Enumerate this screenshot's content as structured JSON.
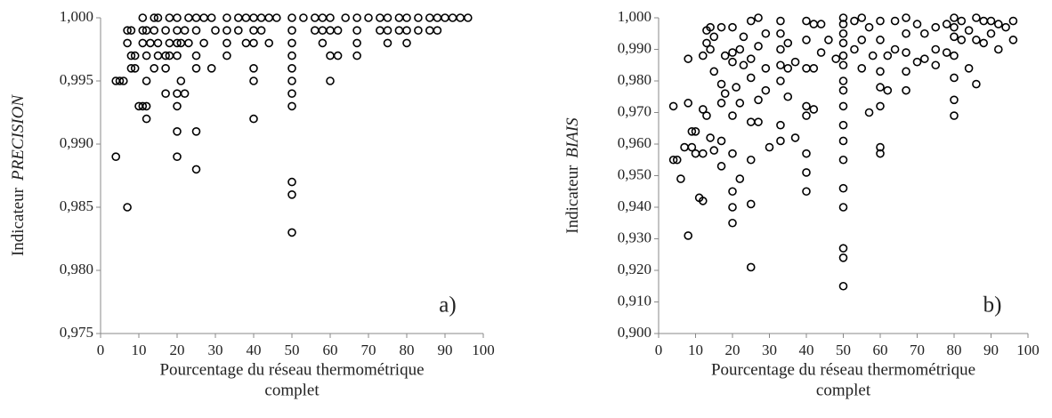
{
  "chart_data": [
    {
      "type": "scatter",
      "annotation": "a)",
      "ylabel": "Indicateur",
      "ylabel_emph": "PRECISION",
      "xlabel": [
        "Pourcentage du réseau thermométrique",
        "complet"
      ],
      "xlim": [
        0,
        100
      ],
      "xticks": [
        0,
        10,
        20,
        30,
        40,
        50,
        60,
        70,
        80,
        90,
        100
      ],
      "ylim": [
        0.975,
        1
      ],
      "yticks": [
        {
          "value": 0.975,
          "label": "0,975"
        },
        {
          "value": 0.98,
          "label": "0,980"
        },
        {
          "value": 0.985,
          "label": "0,985"
        },
        {
          "value": 0.99,
          "label": "0,990"
        },
        {
          "value": 0.995,
          "label": "0,995"
        },
        {
          "value": 1,
          "label": "1,000"
        }
      ],
      "x": [
        4,
        4,
        5,
        6,
        7,
        7,
        7,
        8,
        8,
        8,
        9,
        9,
        10,
        11,
        11,
        11,
        11,
        12,
        12,
        12,
        12,
        12,
        13,
        14,
        14,
        14,
        15,
        15,
        15,
        17,
        17,
        17,
        17,
        18,
        18,
        18,
        20,
        20,
        20,
        20,
        20,
        20,
        20,
        20,
        21,
        21,
        22,
        22,
        23,
        23,
        25,
        25,
        25,
        25,
        25,
        25,
        27,
        27,
        29,
        29,
        30,
        33,
        33,
        33,
        33,
        36,
        36,
        38,
        38,
        40,
        40,
        40,
        40,
        40,
        40,
        42,
        42,
        44,
        44,
        46,
        50,
        50,
        50,
        50,
        50,
        50,
        50,
        50,
        50,
        50,
        50,
        53,
        56,
        56,
        58,
        58,
        58,
        60,
        60,
        60,
        60,
        62,
        62,
        64,
        67,
        67,
        67,
        67,
        70,
        73,
        73,
        75,
        75,
        75,
        78,
        78,
        80,
        80,
        80,
        83,
        83,
        86,
        86,
        88,
        88,
        90,
        92,
        94,
        96
      ],
      "values": [
        0.995,
        0.989,
        0.995,
        0.995,
        0.999,
        0.998,
        0.985,
        0.999,
        0.997,
        0.996,
        0.997,
        0.996,
        0.993,
        1,
        0.999,
        0.998,
        0.993,
        0.999,
        0.997,
        0.995,
        0.993,
        0.992,
        0.998,
        1,
        0.999,
        0.996,
        1,
        0.998,
        0.997,
        0.999,
        0.997,
        0.996,
        0.994,
        1,
        0.998,
        0.997,
        1,
        0.999,
        0.998,
        0.997,
        0.994,
        0.993,
        0.991,
        0.989,
        0.998,
        0.995,
        0.999,
        0.994,
        1,
        0.998,
        1,
        0.999,
        0.997,
        0.996,
        0.991,
        0.988,
        1,
        0.998,
        1,
        0.996,
        0.999,
        1,
        0.999,
        0.998,
        0.997,
        1,
        0.999,
        1,
        0.998,
        1,
        0.999,
        0.998,
        0.996,
        0.995,
        0.992,
        1,
        0.999,
        1,
        0.998,
        1,
        1,
        0.999,
        0.998,
        0.997,
        0.996,
        0.995,
        0.994,
        0.993,
        0.987,
        0.986,
        0.983,
        1,
        1,
        0.999,
        1,
        0.999,
        0.998,
        1,
        0.999,
        0.997,
        0.995,
        0.999,
        0.997,
        1,
        1,
        0.999,
        0.998,
        0.997,
        1,
        1,
        0.999,
        1,
        0.999,
        0.998,
        1,
        0.999,
        1,
        0.999,
        0.998,
        1,
        0.999,
        1,
        0.999,
        1,
        0.999,
        1,
        1,
        1,
        1
      ]
    },
    {
      "type": "scatter",
      "annotation": "b)",
      "ylabel": "Indicateur",
      "ylabel_emph": "BIAIS",
      "xlabel": [
        "Pourcentage du réseau thermométrique",
        "complet"
      ],
      "xlim": [
        0,
        100
      ],
      "xticks": [
        0,
        10,
        20,
        30,
        40,
        50,
        60,
        70,
        80,
        90,
        100
      ],
      "ylim": [
        0.9,
        1
      ],
      "yticks": [
        {
          "value": 0.9,
          "label": "0,900"
        },
        {
          "value": 0.91,
          "label": "0,910"
        },
        {
          "value": 0.92,
          "label": "0,920"
        },
        {
          "value": 0.93,
          "label": "0,930"
        },
        {
          "value": 0.94,
          "label": "0,940"
        },
        {
          "value": 0.95,
          "label": "0,950"
        },
        {
          "value": 0.96,
          "label": "0,960"
        },
        {
          "value": 0.97,
          "label": "0,970"
        },
        {
          "value": 0.98,
          "label": "0,980"
        },
        {
          "value": 0.99,
          "label": "0,990"
        },
        {
          "value": 1,
          "label": "1,000"
        }
      ],
      "x": [
        4,
        4,
        5,
        6,
        7,
        8,
        8,
        8,
        9,
        9,
        10,
        10,
        11,
        12,
        12,
        12,
        12,
        13,
        13,
        13,
        14,
        14,
        14,
        15,
        15,
        15,
        17,
        17,
        17,
        17,
        17,
        18,
        18,
        20,
        20,
        20,
        20,
        20,
        20,
        20,
        20,
        21,
        22,
        22,
        22,
        23,
        23,
        25,
        25,
        25,
        25,
        25,
        25,
        25,
        27,
        27,
        27,
        27,
        29,
        29,
        29,
        30,
        33,
        33,
        33,
        33,
        33,
        33,
        33,
        35,
        35,
        35,
        37,
        37,
        40,
        40,
        40,
        40,
        40,
        40,
        40,
        40,
        42,
        42,
        42,
        44,
        44,
        46,
        48,
        50,
        50,
        50,
        50,
        50,
        50,
        50,
        50,
        50,
        50,
        50,
        50,
        50,
        50,
        50,
        50,
        50,
        53,
        53,
        55,
        55,
        55,
        57,
        57,
        58,
        60,
        60,
        60,
        60,
        60,
        60,
        60,
        62,
        62,
        64,
        64,
        67,
        67,
        67,
        67,
        67,
        70,
        70,
        72,
        72,
        75,
        75,
        75,
        78,
        78,
        80,
        80,
        80,
        80,
        80,
        80,
        80,
        82,
        82,
        84,
        84,
        86,
        86,
        86,
        88,
        88,
        90,
        90,
        92,
        92,
        94,
        96,
        96
      ],
      "values": [
        0.972,
        0.955,
        0.955,
        0.949,
        0.959,
        0.973,
        0.987,
        0.931,
        0.964,
        0.959,
        0.964,
        0.957,
        0.943,
        0.988,
        0.971,
        0.942,
        0.957,
        0.996,
        0.992,
        0.969,
        0.997,
        0.99,
        0.962,
        0.994,
        0.983,
        0.958,
        0.997,
        0.979,
        0.973,
        0.961,
        0.953,
        0.988,
        0.976,
        0.997,
        0.989,
        0.986,
        0.969,
        0.957,
        0.945,
        0.94,
        0.935,
        0.978,
        0.99,
        0.973,
        0.949,
        0.994,
        0.985,
        0.999,
        0.987,
        0.981,
        0.967,
        0.955,
        0.941,
        0.921,
        1,
        0.991,
        0.974,
        0.967,
        0.995,
        0.984,
        0.977,
        0.959,
        0.999,
        0.995,
        0.99,
        0.985,
        0.98,
        0.966,
        0.961,
        0.992,
        0.984,
        0.975,
        0.986,
        0.962,
        0.999,
        0.993,
        0.984,
        0.972,
        0.969,
        0.957,
        0.951,
        0.945,
        0.998,
        0.984,
        0.971,
        0.998,
        0.989,
        0.993,
        0.987,
        1,
        0.998,
        0.995,
        0.992,
        0.988,
        0.985,
        0.98,
        0.977,
        0.972,
        0.966,
        0.961,
        0.955,
        0.946,
        0.94,
        0.927,
        0.924,
        0.915,
        0.999,
        0.99,
        1,
        0.993,
        0.984,
        0.997,
        0.97,
        0.988,
        0.999,
        0.993,
        0.983,
        0.978,
        0.972,
        0.959,
        0.957,
        0.988,
        0.977,
        0.999,
        0.99,
        1,
        0.995,
        0.989,
        0.983,
        0.977,
        0.998,
        0.986,
        0.995,
        0.987,
        0.997,
        0.99,
        0.985,
        0.998,
        0.989,
        1,
        0.997,
        0.994,
        0.988,
        0.981,
        0.974,
        0.969,
        0.999,
        0.993,
        0.996,
        0.984,
        1,
        0.993,
        0.979,
        0.999,
        0.992,
        0.999,
        0.995,
        0.998,
        0.99,
        0.997,
        0.999,
        0.993
      ]
    }
  ]
}
